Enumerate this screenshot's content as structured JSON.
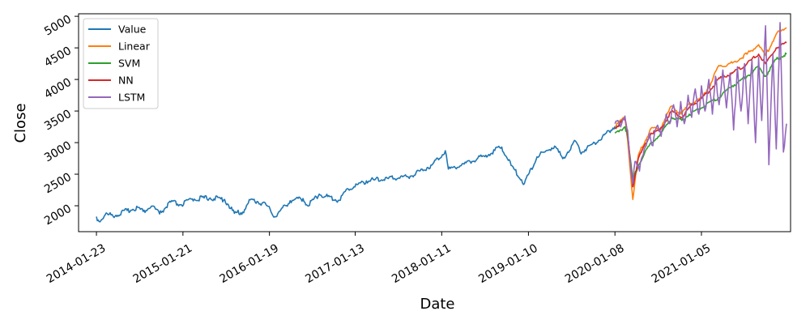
{
  "chart_data": {
    "type": "line",
    "xlabel": "Date",
    "ylabel": "Close",
    "x_ticks": [
      "2014-01-23",
      "2015-01-21",
      "2016-01-19",
      "2017-01-13",
      "2018-01-11",
      "2019-01-10",
      "2020-01-08",
      "2021-01-05"
    ],
    "y_ticks": [
      2000,
      2500,
      3000,
      3500,
      4000,
      4500,
      5000
    ],
    "xlim": [
      "2013-11-09",
      "2022-01-14"
    ],
    "ylim": [
      1590,
      5040
    ],
    "legend_position": "top-left",
    "grid": false,
    "series": [
      {
        "name": "Value",
        "color": "#1f77b4",
        "points": [
          [
            "2014-01-23",
            1828
          ],
          [
            "2014-02-03",
            1750
          ],
          [
            "2014-03-01",
            1860
          ],
          [
            "2014-04-15",
            1850
          ],
          [
            "2014-06-01",
            1925
          ],
          [
            "2014-07-15",
            1975
          ],
          [
            "2014-08-07",
            1910
          ],
          [
            "2014-09-15",
            1995
          ],
          [
            "2014-10-15",
            1870
          ],
          [
            "2014-12-01",
            2060
          ],
          [
            "2015-01-15",
            2015
          ],
          [
            "2015-03-01",
            2110
          ],
          [
            "2015-05-15",
            2125
          ],
          [
            "2015-07-15",
            2100
          ],
          [
            "2015-08-25",
            1880
          ],
          [
            "2015-09-29",
            1900
          ],
          [
            "2015-11-03",
            2105
          ],
          [
            "2016-01-05",
            2015
          ],
          [
            "2016-02-11",
            1829
          ],
          [
            "2016-04-15",
            2080
          ],
          [
            "2016-06-08",
            2115
          ],
          [
            "2016-06-27",
            2000
          ],
          [
            "2016-08-15",
            2185
          ],
          [
            "2016-11-03",
            2085
          ],
          [
            "2016-12-15",
            2265
          ],
          [
            "2017-03-01",
            2395
          ],
          [
            "2017-06-01",
            2430
          ],
          [
            "2017-09-01",
            2470
          ],
          [
            "2017-12-01",
            2645
          ],
          [
            "2018-01-26",
            2872
          ],
          [
            "2018-02-08",
            2581
          ],
          [
            "2018-04-15",
            2660
          ],
          [
            "2018-07-15",
            2800
          ],
          [
            "2018-09-20",
            2930
          ],
          [
            "2018-10-29",
            2640
          ],
          [
            "2018-12-24",
            2351
          ],
          [
            "2019-02-15",
            2775
          ],
          [
            "2019-04-30",
            2945
          ],
          [
            "2019-06-03",
            2745
          ],
          [
            "2019-07-26",
            3025
          ],
          [
            "2019-08-15",
            2850
          ],
          [
            "2019-10-15",
            2995
          ],
          [
            "2019-12-31",
            3230
          ],
          [
            "2020-01-08",
            3253
          ],
          [
            "2020-02-19",
            3386
          ]
        ]
      },
      {
        "name": "Linear",
        "color": "#ff7f0e",
        "points": [
          [
            "2020-01-08",
            3250
          ],
          [
            "2020-02-19",
            3400
          ],
          [
            "2020-03-01",
            3050
          ],
          [
            "2020-03-23",
            2100
          ],
          [
            "2020-04-15",
            2800
          ],
          [
            "2020-06-08",
            3230
          ],
          [
            "2020-07-15",
            3220
          ],
          [
            "2020-09-02",
            3580
          ],
          [
            "2020-10-15",
            3450
          ],
          [
            "2020-11-15",
            3620
          ],
          [
            "2021-01-05",
            3700
          ],
          [
            "2021-02-15",
            3950
          ],
          [
            "2021-03-15",
            4200
          ],
          [
            "2021-05-15",
            4260
          ],
          [
            "2021-07-15",
            4400
          ],
          [
            "2021-09-02",
            4550
          ],
          [
            "2021-10-01",
            4380
          ],
          [
            "2021-11-15",
            4720
          ],
          [
            "2021-12-28",
            4820
          ]
        ]
      },
      {
        "name": "SVM",
        "color": "#2ca02c",
        "points": [
          [
            "2020-01-08",
            3150
          ],
          [
            "2020-02-19",
            3250
          ],
          [
            "2020-03-01",
            3100
          ],
          [
            "2020-03-23",
            2400
          ],
          [
            "2020-04-15",
            2650
          ],
          [
            "2020-06-08",
            3000
          ],
          [
            "2020-07-15",
            3120
          ],
          [
            "2020-09-02",
            3400
          ],
          [
            "2020-10-15",
            3350
          ],
          [
            "2020-11-15",
            3450
          ],
          [
            "2021-01-05",
            3550
          ],
          [
            "2021-02-15",
            3650
          ],
          [
            "2021-03-15",
            3700
          ],
          [
            "2021-05-15",
            3900
          ],
          [
            "2021-07-15",
            4050
          ],
          [
            "2021-09-02",
            4200
          ],
          [
            "2021-10-01",
            4050
          ],
          [
            "2021-11-15",
            4320
          ],
          [
            "2021-12-28",
            4400
          ]
        ]
      },
      {
        "name": "NN",
        "color": "#d62728",
        "points": [
          [
            "2020-01-08",
            3230
          ],
          [
            "2020-02-19",
            3370
          ],
          [
            "2020-03-01",
            3150
          ],
          [
            "2020-03-23",
            2300
          ],
          [
            "2020-04-15",
            2750
          ],
          [
            "2020-06-08",
            3150
          ],
          [
            "2020-07-15",
            3200
          ],
          [
            "2020-09-02",
            3500
          ],
          [
            "2020-10-15",
            3400
          ],
          [
            "2020-11-15",
            3560
          ],
          [
            "2021-01-05",
            3700
          ],
          [
            "2021-02-15",
            3850
          ],
          [
            "2021-03-15",
            4000
          ],
          [
            "2021-05-15",
            4100
          ],
          [
            "2021-07-15",
            4250
          ],
          [
            "2021-09-02",
            4400
          ],
          [
            "2021-10-01",
            4250
          ],
          [
            "2021-11-15",
            4500
          ],
          [
            "2021-12-28",
            4580
          ]
        ]
      },
      {
        "name": "LSTM",
        "color": "#9467bd",
        "points": [
          [
            "2020-01-08",
            3300
          ],
          [
            "2020-01-20",
            3350
          ],
          [
            "2020-02-01",
            3250
          ],
          [
            "2020-02-19",
            3420
          ],
          [
            "2020-03-01",
            3200
          ],
          [
            "2020-03-12",
            2700
          ],
          [
            "2020-03-23",
            2350
          ],
          [
            "2020-04-01",
            2700
          ],
          [
            "2020-04-20",
            2550
          ],
          [
            "2020-05-10",
            2900
          ],
          [
            "2020-06-01",
            3150
          ],
          [
            "2020-06-15",
            2950
          ],
          [
            "2020-07-01",
            3250
          ],
          [
            "2020-07-20",
            3100
          ],
          [
            "2020-08-10",
            3450
          ],
          [
            "2020-08-25",
            3300
          ],
          [
            "2020-09-10",
            3600
          ],
          [
            "2020-09-25",
            3250
          ],
          [
            "2020-10-10",
            3650
          ],
          [
            "2020-10-25",
            3300
          ],
          [
            "2020-11-10",
            3750
          ],
          [
            "2020-11-25",
            3400
          ],
          [
            "2020-12-10",
            3850
          ],
          [
            "2020-12-25",
            3450
          ],
          [
            "2021-01-05",
            3900
          ],
          [
            "2021-01-20",
            3500
          ],
          [
            "2021-02-05",
            4000
          ],
          [
            "2021-02-20",
            3450
          ],
          [
            "2021-03-05",
            4050
          ],
          [
            "2021-03-20",
            3600
          ],
          [
            "2021-04-05",
            4150
          ],
          [
            "2021-04-20",
            3550
          ],
          [
            "2021-05-05",
            4100
          ],
          [
            "2021-05-20",
            3200
          ],
          [
            "2021-06-05",
            4200
          ],
          [
            "2021-06-20",
            3500
          ],
          [
            "2021-07-05",
            4250
          ],
          [
            "2021-07-20",
            3300
          ],
          [
            "2021-08-05",
            4300
          ],
          [
            "2021-08-20",
            3000
          ],
          [
            "2021-09-02",
            4350
          ],
          [
            "2021-09-15",
            3350
          ],
          [
            "2021-10-01",
            4850
          ],
          [
            "2021-10-15",
            2650
          ],
          [
            "2021-11-01",
            4400
          ],
          [
            "2021-11-15",
            2900
          ],
          [
            "2021-12-01",
            4900
          ],
          [
            "2021-12-15",
            2850
          ],
          [
            "2021-12-28",
            3300
          ]
        ]
      }
    ]
  }
}
